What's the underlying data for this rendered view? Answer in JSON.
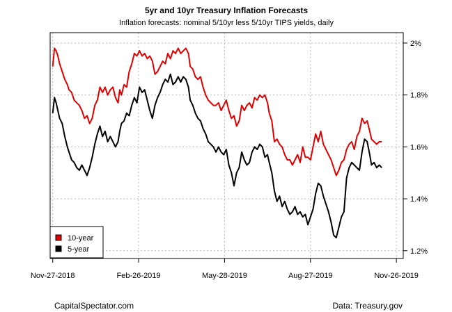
{
  "chart_data": {
    "type": "line",
    "title": "5yr and 10yr Treasury Inflation Forecasts",
    "subtitle": "Inflation forecasts: nominal 5/10yr less 5/10yr TIPS yields, daily",
    "x_tick_labels": [
      "Nov-27-2018",
      "Feb-26-2019",
      "May-28-2019",
      "Aug-27-2019",
      "Nov-26-2019"
    ],
    "y_tick_labels": [
      "2%",
      "1.8%",
      "1.6%",
      "1.4%",
      "1.2%"
    ],
    "y_tick_values": [
      2.0,
      1.8,
      1.6,
      1.4,
      1.2
    ],
    "ylim": [
      1.17,
      2.04
    ],
    "xlim": [
      -0.03,
      4.08
    ],
    "grid": true,
    "legend_position": "bottom-left",
    "series": [
      {
        "name": "10-year",
        "color": "#e00000",
        "points": [
          [
            0.0,
            1.91
          ],
          [
            0.02,
            1.98
          ],
          [
            0.04,
            1.97
          ],
          [
            0.06,
            1.95
          ],
          [
            0.08,
            1.92
          ],
          [
            0.11,
            1.89
          ],
          [
            0.14,
            1.86
          ],
          [
            0.17,
            1.84
          ],
          [
            0.19,
            1.82
          ],
          [
            0.22,
            1.81
          ],
          [
            0.25,
            1.78
          ],
          [
            0.28,
            1.77
          ],
          [
            0.31,
            1.76
          ],
          [
            0.34,
            1.74
          ],
          [
            0.37,
            1.71
          ],
          [
            0.4,
            1.72
          ],
          [
            0.43,
            1.69
          ],
          [
            0.46,
            1.71
          ],
          [
            0.49,
            1.76
          ],
          [
            0.52,
            1.78
          ],
          [
            0.55,
            1.83
          ],
          [
            0.58,
            1.81
          ],
          [
            0.61,
            1.83
          ],
          [
            0.64,
            1.8
          ],
          [
            0.67,
            1.82
          ],
          [
            0.7,
            1.83
          ],
          [
            0.73,
            1.79
          ],
          [
            0.76,
            1.77
          ],
          [
            0.78,
            1.82
          ],
          [
            0.8,
            1.8
          ],
          [
            0.83,
            1.84
          ],
          [
            0.86,
            1.83
          ],
          [
            0.89,
            1.89
          ],
          [
            0.92,
            1.92
          ],
          [
            0.95,
            1.96
          ],
          [
            0.98,
            1.95
          ],
          [
            1.01,
            1.97
          ],
          [
            1.04,
            1.95
          ],
          [
            1.07,
            1.96
          ],
          [
            1.1,
            1.94
          ],
          [
            1.13,
            1.95
          ],
          [
            1.16,
            1.93
          ],
          [
            1.19,
            1.88
          ],
          [
            1.22,
            1.89
          ],
          [
            1.25,
            1.91
          ],
          [
            1.28,
            1.93
          ],
          [
            1.31,
            1.92
          ],
          [
            1.34,
            1.96
          ],
          [
            1.37,
            1.94
          ],
          [
            1.4,
            1.97
          ],
          [
            1.43,
            1.96
          ],
          [
            1.46,
            1.98
          ],
          [
            1.49,
            1.96
          ],
          [
            1.52,
            1.97
          ],
          [
            1.55,
            1.98
          ],
          [
            1.58,
            1.96
          ],
          [
            1.6,
            1.91
          ],
          [
            1.63,
            1.9
          ],
          [
            1.66,
            1.87
          ],
          [
            1.69,
            1.86
          ],
          [
            1.72,
            1.87
          ],
          [
            1.75,
            1.83
          ],
          [
            1.78,
            1.8
          ],
          [
            1.81,
            1.78
          ],
          [
            1.84,
            1.77
          ],
          [
            1.87,
            1.76
          ],
          [
            1.9,
            1.76
          ],
          [
            1.93,
            1.77
          ],
          [
            1.96,
            1.74
          ],
          [
            1.99,
            1.76
          ],
          [
            2.02,
            1.78
          ],
          [
            2.05,
            1.74
          ],
          [
            2.08,
            1.71
          ],
          [
            2.11,
            1.72
          ],
          [
            2.14,
            1.68
          ],
          [
            2.17,
            1.7
          ],
          [
            2.2,
            1.76
          ],
          [
            2.23,
            1.74
          ],
          [
            2.26,
            1.76
          ],
          [
            2.29,
            1.77
          ],
          [
            2.32,
            1.75
          ],
          [
            2.35,
            1.79
          ],
          [
            2.38,
            1.78
          ],
          [
            2.41,
            1.8
          ],
          [
            2.44,
            1.79
          ],
          [
            2.47,
            1.8
          ],
          [
            2.5,
            1.77
          ],
          [
            2.52,
            1.73
          ],
          [
            2.55,
            1.7
          ],
          [
            2.58,
            1.62
          ],
          [
            2.61,
            1.63
          ],
          [
            2.64,
            1.61
          ],
          [
            2.67,
            1.6
          ],
          [
            2.7,
            1.57
          ],
          [
            2.73,
            1.55
          ],
          [
            2.76,
            1.55
          ],
          [
            2.79,
            1.53
          ],
          [
            2.82,
            1.55
          ],
          [
            2.85,
            1.57
          ],
          [
            2.88,
            1.54
          ],
          [
            2.91,
            1.6
          ],
          [
            2.94,
            1.56
          ],
          [
            2.97,
            1.56
          ],
          [
            3.0,
            1.55
          ],
          [
            3.03,
            1.6
          ],
          [
            3.06,
            1.65
          ],
          [
            3.09,
            1.62
          ],
          [
            3.12,
            1.66
          ],
          [
            3.15,
            1.61
          ],
          [
            3.18,
            1.59
          ],
          [
            3.21,
            1.57
          ],
          [
            3.24,
            1.55
          ],
          [
            3.27,
            1.52
          ],
          [
            3.3,
            1.49
          ],
          [
            3.33,
            1.51
          ],
          [
            3.36,
            1.54
          ],
          [
            3.39,
            1.55
          ],
          [
            3.42,
            1.59
          ],
          [
            3.45,
            1.61
          ],
          [
            3.48,
            1.62
          ],
          [
            3.51,
            1.59
          ],
          [
            3.54,
            1.64
          ],
          [
            3.57,
            1.66
          ],
          [
            3.6,
            1.71
          ],
          [
            3.63,
            1.69
          ],
          [
            3.66,
            1.7
          ],
          [
            3.69,
            1.66
          ],
          [
            3.71,
            1.63
          ],
          [
            3.74,
            1.62
          ],
          [
            3.77,
            1.61
          ],
          [
            3.8,
            1.62
          ],
          [
            3.83,
            1.62
          ]
        ]
      },
      {
        "name": "5-year",
        "color": "#000000",
        "points": [
          [
            0.0,
            1.73
          ],
          [
            0.02,
            1.79
          ],
          [
            0.04,
            1.77
          ],
          [
            0.06,
            1.74
          ],
          [
            0.08,
            1.71
          ],
          [
            0.11,
            1.69
          ],
          [
            0.14,
            1.64
          ],
          [
            0.17,
            1.6
          ],
          [
            0.19,
            1.58
          ],
          [
            0.22,
            1.55
          ],
          [
            0.25,
            1.54
          ],
          [
            0.28,
            1.52
          ],
          [
            0.31,
            1.51
          ],
          [
            0.34,
            1.53
          ],
          [
            0.37,
            1.51
          ],
          [
            0.4,
            1.49
          ],
          [
            0.43,
            1.52
          ],
          [
            0.46,
            1.56
          ],
          [
            0.49,
            1.61
          ],
          [
            0.52,
            1.65
          ],
          [
            0.55,
            1.68
          ],
          [
            0.58,
            1.64
          ],
          [
            0.61,
            1.66
          ],
          [
            0.64,
            1.62
          ],
          [
            0.67,
            1.64
          ],
          [
            0.7,
            1.62
          ],
          [
            0.73,
            1.6
          ],
          [
            0.76,
            1.62
          ],
          [
            0.78,
            1.66
          ],
          [
            0.8,
            1.69
          ],
          [
            0.83,
            1.7
          ],
          [
            0.86,
            1.73
          ],
          [
            0.89,
            1.72
          ],
          [
            0.92,
            1.76
          ],
          [
            0.95,
            1.79
          ],
          [
            0.98,
            1.77
          ],
          [
            1.01,
            1.83
          ],
          [
            1.04,
            1.81
          ],
          [
            1.07,
            1.82
          ],
          [
            1.1,
            1.78
          ],
          [
            1.13,
            1.74
          ],
          [
            1.16,
            1.71
          ],
          [
            1.19,
            1.76
          ],
          [
            1.22,
            1.79
          ],
          [
            1.25,
            1.81
          ],
          [
            1.28,
            1.84
          ],
          [
            1.31,
            1.86
          ],
          [
            1.34,
            1.85
          ],
          [
            1.37,
            1.88
          ],
          [
            1.4,
            1.84
          ],
          [
            1.43,
            1.85
          ],
          [
            1.46,
            1.87
          ],
          [
            1.49,
            1.85
          ],
          [
            1.52,
            1.87
          ],
          [
            1.55,
            1.86
          ],
          [
            1.58,
            1.83
          ],
          [
            1.6,
            1.78
          ],
          [
            1.63,
            1.76
          ],
          [
            1.66,
            1.73
          ],
          [
            1.69,
            1.71
          ],
          [
            1.72,
            1.7
          ],
          [
            1.75,
            1.67
          ],
          [
            1.78,
            1.65
          ],
          [
            1.81,
            1.62
          ],
          [
            1.84,
            1.61
          ],
          [
            1.87,
            1.6
          ],
          [
            1.9,
            1.58
          ],
          [
            1.93,
            1.6
          ],
          [
            1.96,
            1.58
          ],
          [
            1.99,
            1.57
          ],
          [
            2.02,
            1.59
          ],
          [
            2.05,
            1.53
          ],
          [
            2.08,
            1.5
          ],
          [
            2.11,
            1.45
          ],
          [
            2.14,
            1.5
          ],
          [
            2.17,
            1.52
          ],
          [
            2.2,
            1.58
          ],
          [
            2.23,
            1.55
          ],
          [
            2.26,
            1.53
          ],
          [
            2.29,
            1.54
          ],
          [
            2.32,
            1.58
          ],
          [
            2.35,
            1.6
          ],
          [
            2.38,
            1.59
          ],
          [
            2.41,
            1.61
          ],
          [
            2.44,
            1.6
          ],
          [
            2.47,
            1.56
          ],
          [
            2.5,
            1.57
          ],
          [
            2.52,
            1.54
          ],
          [
            2.55,
            1.5
          ],
          [
            2.58,
            1.43
          ],
          [
            2.61,
            1.39
          ],
          [
            2.64,
            1.41
          ],
          [
            2.67,
            1.37
          ],
          [
            2.7,
            1.39
          ],
          [
            2.73,
            1.36
          ],
          [
            2.76,
            1.34
          ],
          [
            2.79,
            1.35
          ],
          [
            2.82,
            1.37
          ],
          [
            2.85,
            1.34
          ],
          [
            2.88,
            1.35
          ],
          [
            2.91,
            1.33
          ],
          [
            2.94,
            1.34
          ],
          [
            2.97,
            1.3
          ],
          [
            3.0,
            1.33
          ],
          [
            3.03,
            1.36
          ],
          [
            3.06,
            1.42
          ],
          [
            3.09,
            1.46
          ],
          [
            3.12,
            1.45
          ],
          [
            3.15,
            1.41
          ],
          [
            3.18,
            1.38
          ],
          [
            3.21,
            1.35
          ],
          [
            3.24,
            1.31
          ],
          [
            3.27,
            1.26
          ],
          [
            3.3,
            1.25
          ],
          [
            3.33,
            1.29
          ],
          [
            3.36,
            1.33
          ],
          [
            3.39,
            1.35
          ],
          [
            3.42,
            1.48
          ],
          [
            3.45,
            1.52
          ],
          [
            3.48,
            1.54
          ],
          [
            3.51,
            1.53
          ],
          [
            3.54,
            1.52
          ],
          [
            3.57,
            1.51
          ],
          [
            3.6,
            1.58
          ],
          [
            3.63,
            1.63
          ],
          [
            3.66,
            1.62
          ],
          [
            3.69,
            1.57
          ],
          [
            3.71,
            1.53
          ],
          [
            3.74,
            1.54
          ],
          [
            3.77,
            1.52
          ],
          [
            3.8,
            1.53
          ],
          [
            3.83,
            1.52
          ]
        ]
      }
    ],
    "legend": [
      {
        "label": "10-year",
        "color": "#e00000"
      },
      {
        "label": "5-year",
        "color": "#000000"
      }
    ]
  },
  "footer": {
    "left": "CapitalSpectator.com",
    "right": "Data: Treasury.gov"
  }
}
